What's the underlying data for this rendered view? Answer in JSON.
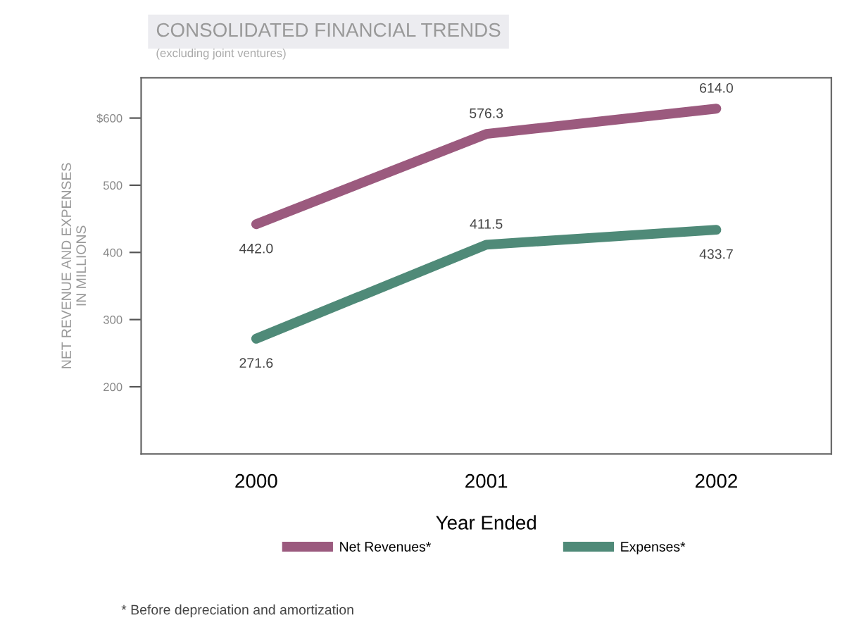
{
  "chart_data": {
    "type": "line",
    "title": "CONSOLIDATED FINANCIAL TRENDS",
    "subtitle": "(excluding joint ventures)",
    "xlabel": "Year Ended",
    "ylabel": "NET REVENUE AND EXPENSES\nIN MILLIONS",
    "categories": [
      "2000",
      "2001",
      "2002"
    ],
    "series": [
      {
        "name": "Net Revenues*",
        "color": "#9b5a7e",
        "values": [
          442.0,
          576.3,
          614.0
        ],
        "value_labels": [
          "442.0",
          "576.3",
          "614.0"
        ]
      },
      {
        "name": "Expenses*",
        "color": "#4f8a78",
        "values": [
          271.6,
          411.5,
          433.7
        ],
        "value_labels": [
          "271.6",
          "411.5",
          "433.7"
        ]
      }
    ],
    "ylim": [
      100,
      660
    ],
    "yticks": [
      {
        "value": 600,
        "label": "$600"
      },
      500,
      400,
      300,
      200
    ],
    "legend": "bottom",
    "grid": false,
    "marker": "none",
    "line_style": "solid",
    "annotations": [
      "* Before depreciation and amortization"
    ]
  }
}
